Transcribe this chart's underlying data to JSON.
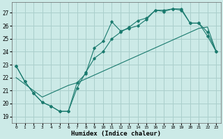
{
  "xlabel": "Humidex (Indice chaleur)",
  "xlim": [
    -0.5,
    23.5
  ],
  "ylim": [
    18.5,
    27.8
  ],
  "yticks": [
    19,
    20,
    21,
    22,
    23,
    24,
    25,
    26,
    27
  ],
  "xticks": [
    0,
    1,
    2,
    3,
    4,
    5,
    6,
    7,
    8,
    9,
    10,
    11,
    12,
    13,
    14,
    15,
    16,
    17,
    18,
    19,
    20,
    21,
    22,
    23
  ],
  "bg_color": "#cceae7",
  "grid_color": "#aacfcc",
  "line_color": "#1a7a6e",
  "line1_x": [
    0,
    1,
    2,
    3,
    4,
    5,
    6,
    7,
    8,
    9,
    10,
    11,
    12,
    13,
    14,
    15,
    16,
    17,
    18,
    19,
    20,
    21,
    22,
    23
  ],
  "line1_y": [
    22.9,
    21.7,
    20.8,
    20.1,
    19.8,
    19.4,
    19.4,
    21.6,
    22.3,
    24.3,
    24.8,
    26.3,
    25.6,
    25.8,
    26.0,
    26.5,
    27.2,
    27.2,
    27.3,
    27.3,
    26.2,
    26.2,
    25.2,
    24.0
  ],
  "line2_x": [
    0,
    1,
    2,
    3,
    4,
    5,
    6,
    7,
    8,
    9,
    10,
    11,
    12,
    13,
    14,
    15,
    16,
    17,
    18,
    19,
    20,
    21,
    22,
    23
  ],
  "line2_y": [
    22.9,
    21.7,
    20.8,
    20.1,
    19.8,
    19.4,
    19.4,
    21.2,
    22.4,
    23.5,
    24.0,
    25.0,
    25.5,
    25.9,
    26.4,
    26.6,
    27.2,
    27.1,
    27.3,
    27.2,
    26.2,
    26.2,
    25.5,
    24.0
  ],
  "line3_x": [
    0,
    1,
    2,
    3,
    4,
    5,
    6,
    7,
    8,
    9,
    10,
    11,
    12,
    13,
    14,
    15,
    16,
    17,
    18,
    19,
    20,
    21,
    22,
    23
  ],
  "line3_y": [
    22.0,
    21.5,
    21.0,
    20.5,
    20.8,
    21.1,
    21.4,
    21.6,
    21.9,
    22.2,
    22.5,
    22.8,
    23.1,
    23.4,
    23.7,
    24.0,
    24.3,
    24.6,
    24.9,
    25.2,
    25.5,
    25.8,
    25.9,
    24.0
  ]
}
